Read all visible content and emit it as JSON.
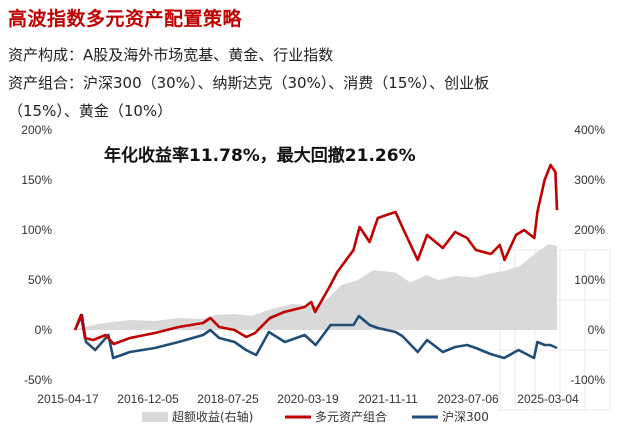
{
  "header": {
    "title": "高波指数多元资产配置策略",
    "line1": "资产构成：A股及海外市场宽基、黄金、行业指数",
    "line2": "资产组合：沪深300（30%）、纳斯达克（30%）、消费（15%）、创业板",
    "line3": "（15%）、黄金（10%）"
  },
  "colors": {
    "title": "#c00000",
    "portfolio": "#c00000",
    "hs300": "#1f4e79",
    "excess": "#d9d9d9"
  },
  "chart_data": {
    "type": "line",
    "title": "",
    "annotation": "年化收益率11.78%，最大回撤21.26%",
    "x_ticks": [
      "2015-04-17",
      "2016-12-05",
      "2018-07-25",
      "2020-03-19",
      "2021-11-11",
      "2023-07-06",
      "2025-03-04"
    ],
    "x_range": [
      "2015-04-17",
      "2025-03-04"
    ],
    "y_left_ticks": [
      "200%",
      "150%",
      "100%",
      "50%",
      "0%",
      "-50%"
    ],
    "y_left_range": [
      -50,
      200
    ],
    "y_right_ticks": [
      "400%",
      "300%",
      "200%",
      "100%",
      "0%",
      "-100%"
    ],
    "y_right_range": [
      -100,
      400
    ],
    "legend_position": "bottom",
    "series": [
      {
        "name": "超额收益(右轴)",
        "type": "area",
        "axis": "right",
        "x": [
          "2015-04-17",
          "2015-06-01",
          "2015-08-01",
          "2015-10-01",
          "2016-01-01",
          "2016-06-01",
          "2016-12-05",
          "2017-06-01",
          "2017-12-01",
          "2018-03-01",
          "2018-07-25",
          "2018-12-01",
          "2019-04-01",
          "2019-10-01",
          "2020-03-19",
          "2020-07-01",
          "2020-10-01",
          "2021-02-01",
          "2021-06-01",
          "2021-11-11",
          "2022-03-01",
          "2022-07-01",
          "2022-10-01",
          "2023-02-01",
          "2023-07-06",
          "2023-10-01",
          "2024-02-01",
          "2024-06-01",
          "2024-10-01",
          "2025-01-01",
          "2025-03-04"
        ],
        "values": [
          0,
          5,
          8,
          12,
          15,
          20,
          18,
          24,
          22,
          30,
          32,
          28,
          40,
          52,
          48,
          65,
          90,
          100,
          120,
          115,
          95,
          110,
          100,
          108,
          105,
          112,
          118,
          128,
          155,
          172,
          168
        ]
      },
      {
        "name": "多元资产组合",
        "type": "line",
        "axis": "left",
        "x": [
          "2015-04-17",
          "2015-06-01",
          "2015-07-01",
          "2015-09-01",
          "2015-12-01",
          "2016-02-01",
          "2016-06-01",
          "2016-12-05",
          "2017-06-01",
          "2017-12-01",
          "2018-01-25",
          "2018-04-01",
          "2018-07-25",
          "2018-10-20",
          "2018-12-25",
          "2019-04-15",
          "2019-08-01",
          "2019-12-31",
          "2020-02-19",
          "2020-03-19",
          "2020-06-30",
          "2020-09-01",
          "2020-12-31",
          "2021-02-15",
          "2021-05-01",
          "2021-07-01",
          "2021-11-11",
          "2022-01-01",
          "2022-04-26",
          "2022-07-05",
          "2022-10-31",
          "2023-01-31",
          "2023-05-01",
          "2023-07-06",
          "2023-10-26",
          "2024-01-01",
          "2024-02-05",
          "2024-05-01",
          "2024-07-01",
          "2024-09-15",
          "2024-10-08",
          "2024-12-01",
          "2025-01-15",
          "2025-02-20",
          "2025-03-04"
        ],
        "values": [
          0,
          15,
          -8,
          -10,
          -5,
          -14,
          -8,
          -3,
          3,
          7,
          12,
          3,
          0,
          -7,
          -3,
          12,
          18,
          23,
          28,
          18,
          42,
          58,
          80,
          103,
          88,
          112,
          118,
          103,
          70,
          95,
          82,
          98,
          92,
          80,
          76,
          85,
          70,
          95,
          100,
          92,
          118,
          150,
          165,
          158,
          120
        ]
      },
      {
        "name": "沪深300",
        "type": "line",
        "axis": "left",
        "x": [
          "2015-04-17",
          "2015-06-08",
          "2015-07-08",
          "2015-09-15",
          "2015-12-23",
          "2016-01-28",
          "2016-06-01",
          "2016-12-05",
          "2017-06-01",
          "2017-12-01",
          "2018-01-24",
          "2018-04-01",
          "2018-07-25",
          "2018-10-18",
          "2019-01-03",
          "2019-04-08",
          "2019-08-06",
          "2019-12-31",
          "2020-03-23",
          "2020-07-13",
          "2020-12-31",
          "2021-02-10",
          "2021-05-01",
          "2021-07-01",
          "2021-11-11",
          "2022-01-01",
          "2022-04-26",
          "2022-07-05",
          "2022-10-31",
          "2023-01-31",
          "2023-05-01",
          "2023-07-06",
          "2023-10-23",
          "2024-02-02",
          "2024-05-20",
          "2024-09-13",
          "2024-10-08",
          "2024-12-01",
          "2025-01-13",
          "2025-03-04"
        ],
        "values": [
          0,
          15,
          -12,
          -20,
          -5,
          -28,
          -22,
          -18,
          -12,
          -5,
          0,
          -8,
          -12,
          -20,
          -25,
          -2,
          -12,
          -5,
          -15,
          5,
          5,
          14,
          5,
          2,
          -2,
          -6,
          -22,
          -10,
          -22,
          -17,
          -15,
          -18,
          -24,
          -28,
          -20,
          -28,
          -12,
          -15,
          -15,
          -18
        ]
      }
    ]
  }
}
